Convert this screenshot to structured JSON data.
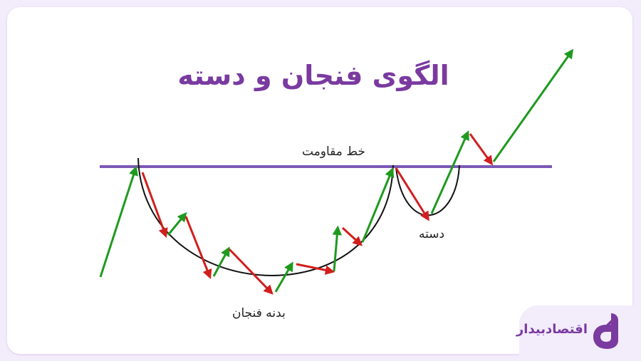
{
  "title": "الگوی فنجان و دسته",
  "labels": {
    "resistance": "خط مقاومت",
    "cup_body": "بدنه فنجان",
    "handle": "دسته"
  },
  "brand": {
    "name": "اقتصادبیدار",
    "logo_icon": "eqtesad-bidar-logo"
  },
  "colors": {
    "title": "#7a3aa0",
    "resistance_line": "#7b58b6",
    "up_arrow": "#1f9a1f",
    "down_arrow": "#d21e1e",
    "curve": "#111111",
    "background": "#f3ecfb"
  }
}
